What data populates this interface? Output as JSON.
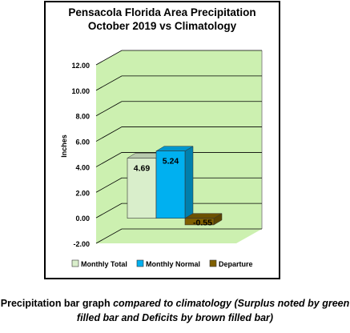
{
  "chart_data": {
    "type": "bar",
    "title_lines": [
      "Pensacola Florida Area Precipitation",
      "October 2019 vs Climatology"
    ],
    "ylabel": "Inches",
    "ylim": [
      -2,
      12
    ],
    "yticks": [
      "-2.00",
      "0.00",
      "2.00",
      "4.00",
      "6.00",
      "8.00",
      "10.00",
      "12.00"
    ],
    "grid": true,
    "legend_position": "bottom",
    "series": [
      {
        "name": "Monthly Total",
        "value": 4.69,
        "label": "4.69",
        "color": "#d9eecb"
      },
      {
        "name": "Monthly Normal",
        "value": 5.24,
        "label": "5.24",
        "color": "#00b0f0"
      },
      {
        "name": "Departure",
        "value": -0.55,
        "label": "-0.55",
        "color": "#7f5f00"
      }
    ],
    "plot_background": "#ccf0b0"
  },
  "caption": {
    "part1": "Precipitation bar graph ",
    "part2": "compared to climatology (Surplus noted by green filled bar and Deficits by brown filled bar)"
  }
}
